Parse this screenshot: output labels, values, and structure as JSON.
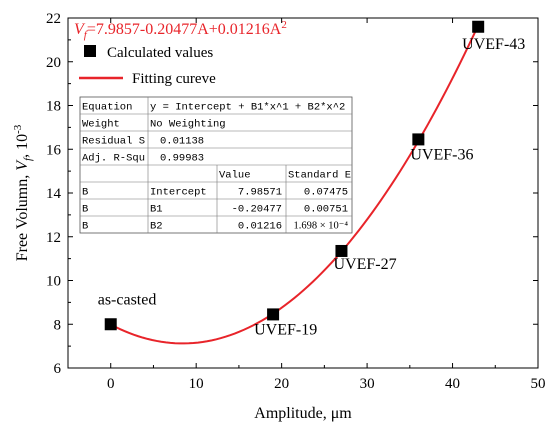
{
  "chart_data": {
    "type": "scatter",
    "equation_annotation": {
      "var": "V",
      "sub": "f",
      "rhs": "=7.9857-0.20477A+0.01216A",
      "sup": "2",
      "color": "#e8242a"
    },
    "xlabel": "Amplitude, μm",
    "ylabel": {
      "pre": "Free Volumn, ",
      "var": "V",
      "sub": "f",
      "post": ", 10",
      "sup": "-3"
    },
    "xlim": [
      -5,
      50
    ],
    "ylim": [
      6,
      22
    ],
    "xticks": [
      "0",
      "10",
      "20",
      "30",
      "40",
      "50"
    ],
    "xtick_values": [
      0,
      10,
      20,
      30,
      40,
      50
    ],
    "yticks": [
      "6",
      "8",
      "10",
      "12",
      "14",
      "16",
      "18",
      "20",
      "22"
    ],
    "ytick_values": [
      6,
      8,
      10,
      12,
      14,
      16,
      18,
      20,
      22
    ],
    "series": [
      {
        "name": "Calculated values",
        "kind": "scatter",
        "marker": "square",
        "color": "#000000",
        "x": [
          0,
          19,
          27,
          36,
          43
        ],
        "y": [
          8.0,
          8.45,
          11.35,
          16.45,
          21.6
        ]
      },
      {
        "name": "Fitting cureve",
        "kind": "line",
        "color": "#e8242a",
        "fit": {
          "intercept": 7.98571,
          "b1": -0.20477,
          "b2": 0.01216
        },
        "x_range": [
          0,
          43
        ]
      }
    ],
    "point_labels": [
      "as-casted",
      "UVEF-19",
      "UVEF-27",
      "UVEF-36",
      "UVEF-43"
    ],
    "legend": {
      "position": "top-left",
      "items": [
        "Calculated values",
        "Fitting cureve"
      ]
    },
    "fit_table": {
      "rows": [
        [
          "Equation",
          "y = Intercept + B1*x^1 + B2*x^2",
          "",
          ""
        ],
        [
          "Weight",
          "No Weighting",
          "",
          ""
        ],
        [
          "Residual S",
          "0.01138",
          "",
          ""
        ],
        [
          "Adj. R-Squ",
          "0.99983",
          "",
          ""
        ],
        [
          "",
          "",
          "Value",
          "Standard E"
        ],
        [
          "B",
          "Intercept",
          "7.98571",
          "0.07475"
        ],
        [
          "B",
          "B1",
          "-0.20477",
          "0.00751"
        ],
        [
          "B",
          "B2",
          "0.01216",
          "1.698 × 10⁻⁴"
        ]
      ]
    }
  }
}
